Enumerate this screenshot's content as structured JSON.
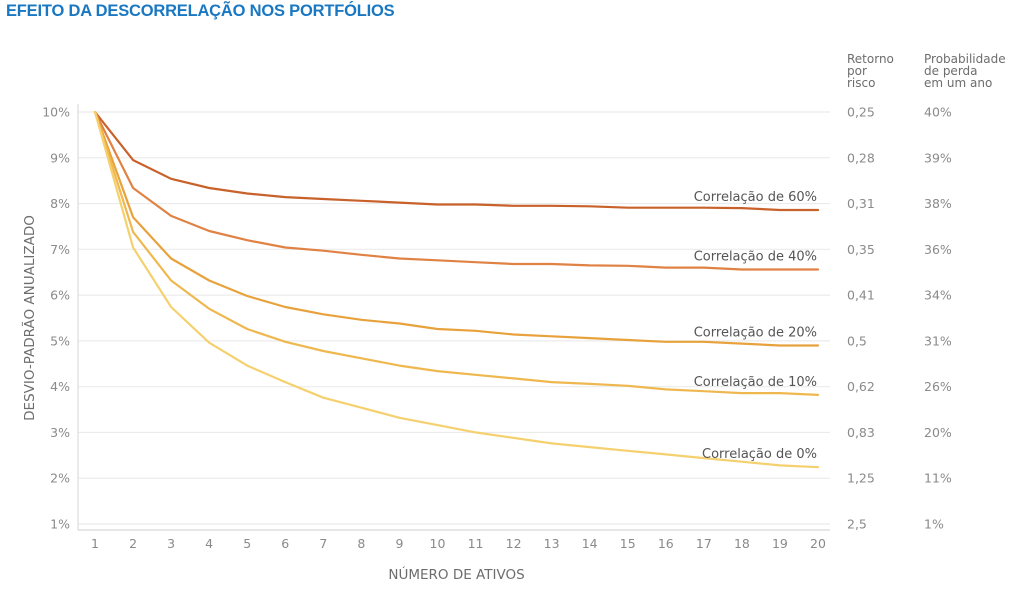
{
  "title": "EFEITO DA DESCORRELAÇÃO NOS PORTFÓLIOS",
  "chart_data": {
    "type": "line",
    "title": "EFEITO DA DESCORRELAÇÃO NOS PORTFÓLIOS",
    "xlabel": "NÚMERO DE ATIVOS",
    "ylabel": "DESVIO-PADRÃO ANUALIZADO",
    "x": [
      1,
      2,
      3,
      4,
      5,
      6,
      7,
      8,
      9,
      10,
      11,
      12,
      13,
      14,
      15,
      16,
      17,
      18,
      19,
      20
    ],
    "xlim": [
      1,
      20
    ],
    "ylim": [
      1,
      10
    ],
    "y_ticks": [
      {
        "value": 10,
        "label": "10%"
      },
      {
        "value": 9,
        "label": "9%"
      },
      {
        "value": 8,
        "label": "8%"
      },
      {
        "value": 7,
        "label": "7%"
      },
      {
        "value": 6,
        "label": "6%"
      },
      {
        "value": 5,
        "label": "5%"
      },
      {
        "value": 4,
        "label": "4%"
      },
      {
        "value": 3,
        "label": "3%"
      },
      {
        "value": 2,
        "label": "2%"
      },
      {
        "value": 1,
        "label": "1%"
      }
    ],
    "x_tick_labels": [
      "1",
      "2",
      "3",
      "4",
      "5",
      "6",
      "7",
      "8",
      "9",
      "10",
      "11",
      "12",
      "13",
      "14",
      "15",
      "16",
      "17",
      "18",
      "19",
      "20"
    ],
    "grid": true,
    "secondary_axes": [
      {
        "header": [
          "Retorno",
          "por",
          "risco"
        ],
        "labels": [
          "0,25",
          "0,28",
          "0,31",
          "0,35",
          "0,41",
          "0,5",
          "0,62",
          "0,83",
          "1,25",
          "2,5"
        ]
      },
      {
        "header": [
          "Probabilidade",
          "de perda",
          "em um ano"
        ],
        "labels": [
          "40%",
          "39%",
          "38%",
          "36%",
          "34%",
          "31%",
          "26%",
          "20%",
          "11%",
          "1%"
        ]
      }
    ],
    "series": [
      {
        "name": "Correlação de 60%",
        "color": "#c8612a",
        "values": [
          10,
          8.95,
          8.54,
          8.34,
          8.22,
          8.14,
          8.1,
          8.06,
          8.02,
          7.98,
          7.98,
          7.95,
          7.95,
          7.94,
          7.91,
          7.91,
          7.91,
          7.9,
          7.86,
          7.86
        ]
      },
      {
        "name": "Correlação de 40%",
        "color": "#e08244",
        "values": [
          10,
          8.34,
          7.73,
          7.4,
          7.2,
          7.04,
          6.97,
          6.88,
          6.8,
          6.76,
          6.72,
          6.68,
          6.68,
          6.65,
          6.64,
          6.6,
          6.6,
          6.56,
          6.56,
          6.56
        ]
      },
      {
        "name": "Correlação de 20%",
        "color": "#e8a23c",
        "values": [
          10,
          7.7,
          6.8,
          6.32,
          5.98,
          5.74,
          5.58,
          5.46,
          5.38,
          5.26,
          5.22,
          5.14,
          5.1,
          5.06,
          5.02,
          4.98,
          4.98,
          4.94,
          4.9,
          4.9
        ]
      },
      {
        "name": "Correlação de 10%",
        "color": "#efb84f",
        "values": [
          10,
          7.38,
          6.32,
          5.7,
          5.26,
          4.98,
          4.78,
          4.62,
          4.46,
          4.34,
          4.26,
          4.18,
          4.1,
          4.06,
          4.02,
          3.94,
          3.9,
          3.86,
          3.86,
          3.82
        ]
      },
      {
        "name": "Correlação de 0%",
        "color": "#f5d06e",
        "values": [
          10,
          7.04,
          5.74,
          4.96,
          4.46,
          4.1,
          3.76,
          3.54,
          3.32,
          3.16,
          3.0,
          2.88,
          2.76,
          2.68,
          2.6,
          2.52,
          2.44,
          2.36,
          2.28,
          2.24
        ]
      }
    ]
  }
}
